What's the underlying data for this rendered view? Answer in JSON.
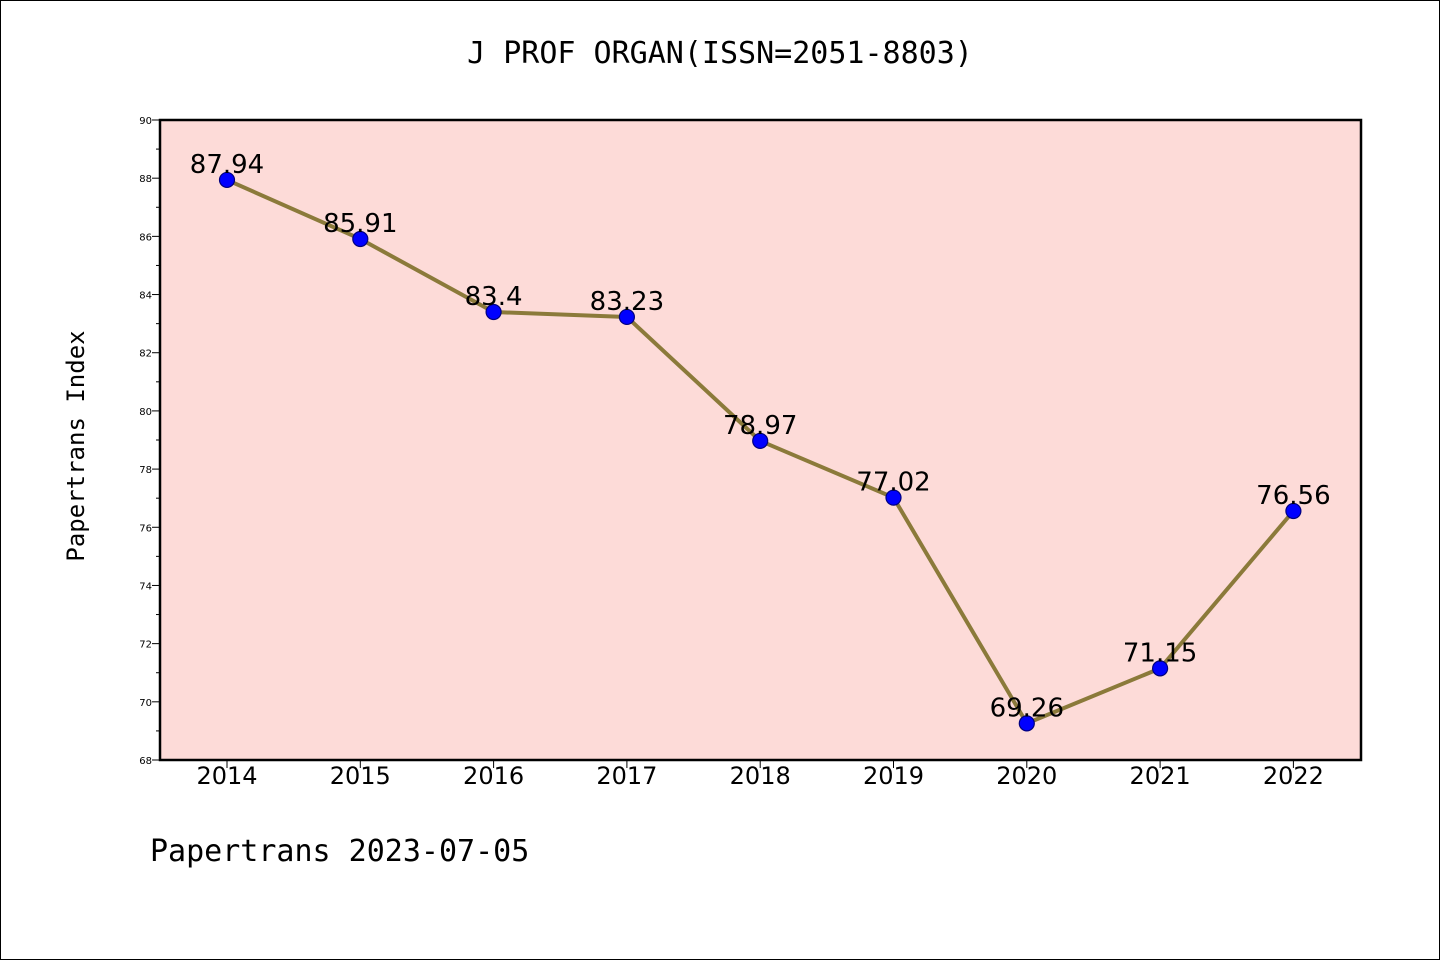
{
  "chart_data": {
    "type": "line",
    "title": "J PROF ORGAN(ISSN=2051-8803)",
    "ylabel": "Papertrans Index",
    "xlabel": "",
    "footer": "Papertrans 2023-07-05",
    "categories": [
      "2014",
      "2015",
      "2016",
      "2017",
      "2018",
      "2019",
      "2020",
      "2021",
      "2022"
    ],
    "series": [
      {
        "values": [
          87.94,
          85.91,
          83.4,
          83.23,
          78.97,
          77.02,
          69.26,
          71.15,
          76.56
        ],
        "labels": [
          "87.94",
          "85.91",
          "83.4",
          "83.23",
          "78.97",
          "77.02",
          "69.26",
          "71.15",
          "76.56"
        ]
      }
    ],
    "ylim": [
      68,
      90
    ],
    "yticks": [
      68,
      70,
      72,
      74,
      76,
      78,
      80,
      82,
      84,
      86,
      88,
      90
    ],
    "grid": false,
    "colors": {
      "plot_background": "#fddbd8",
      "line": "#8b7a3a",
      "marker_fill": "#0000ff",
      "marker_edge": "#000080"
    }
  }
}
